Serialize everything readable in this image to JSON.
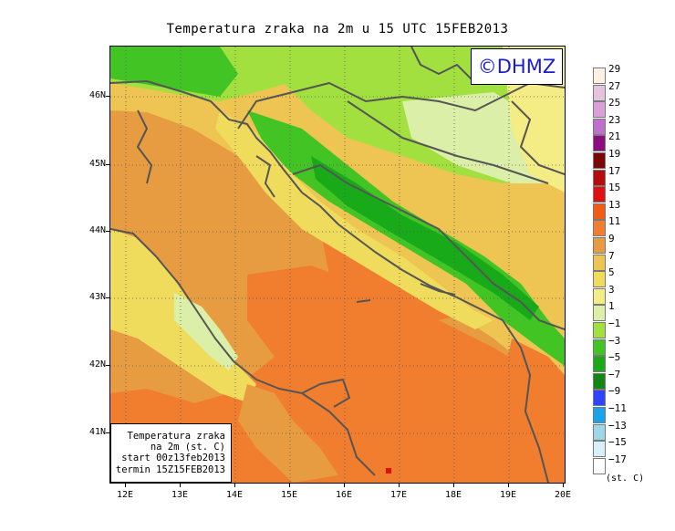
{
  "title": "Temperatura zraka na 2m u 15 UTC 15FEB2013",
  "logo": "©DHMZ",
  "infobox": {
    "line1": "Temperatura zraka",
    "line2": "na 2m (st. C)",
    "line3": "start 00z13feb2013",
    "line4": "termin 15Z15FEB2013"
  },
  "y_axis_labels": [
    "46N",
    "45N",
    "44N",
    "43N",
    "42N",
    "41N"
  ],
  "x_axis_labels": [
    "12E",
    "13E",
    "14E",
    "15E",
    "16E",
    "17E",
    "18E",
    "19E",
    "20E"
  ],
  "legend": {
    "labels": [
      "29",
      "27",
      "25",
      "23",
      "21",
      "19",
      "17",
      "15",
      "13",
      "11",
      "9",
      "7",
      "5",
      "3",
      "1",
      "−1",
      "−3",
      "−5",
      "−7",
      "−9",
      "−11",
      "−13",
      "−15",
      "−17"
    ],
    "colors": [
      "#fff0e4",
      "#e4c4dc",
      "#dca0d8",
      "#c070cc",
      "#8e0a80",
      "#7c0606",
      "#b80c0c",
      "#e01010",
      "#f25a16",
      "#f07e2e",
      "#e89c42",
      "#eec452",
      "#f0dc5c",
      "#f4ec84",
      "#dcefa8",
      "#a2e040",
      "#42c424",
      "#18aa18",
      "#118611",
      "#3044ff",
      "#18a4e8",
      "#9cd8e8",
      "#d8f0f8",
      "#ffffff"
    ],
    "unit": "(st. C)"
  },
  "map_data": {
    "type": "filled-contour",
    "region": "Adriatic / Croatia",
    "lon_range": [
      11.7,
      20.0
    ],
    "lat_range": [
      40.3,
      46.8
    ],
    "variable": "2m air temperature",
    "units": "°C",
    "gridlines": "dotted"
  }
}
